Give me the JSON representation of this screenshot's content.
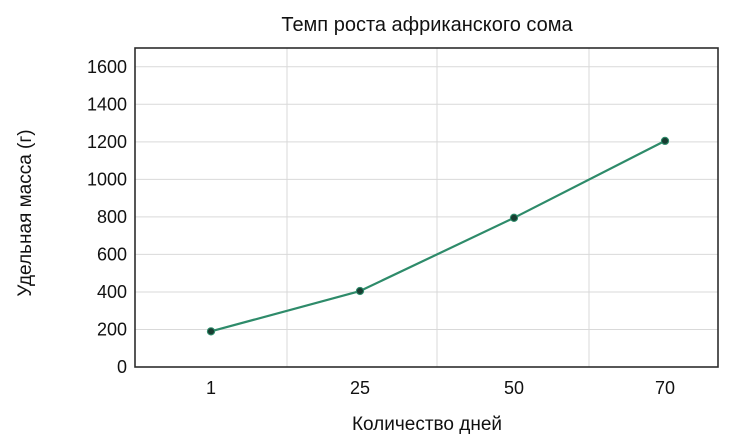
{
  "chart_data": {
    "type": "line",
    "title": "Темп роста африканского сома",
    "xlabel": "Количество дней",
    "ylabel": "Удельная масса (г)",
    "categories": [
      "1",
      "25",
      "50",
      "70"
    ],
    "series": [
      {
        "values": [
          190,
          405,
          795,
          1205
        ],
        "color": "#2e8b6a"
      }
    ],
    "ylim": [
      0,
      1700
    ],
    "yticks": [
      0,
      200,
      400,
      600,
      800,
      1000,
      1200,
      1400,
      1600
    ],
    "grid": true
  }
}
